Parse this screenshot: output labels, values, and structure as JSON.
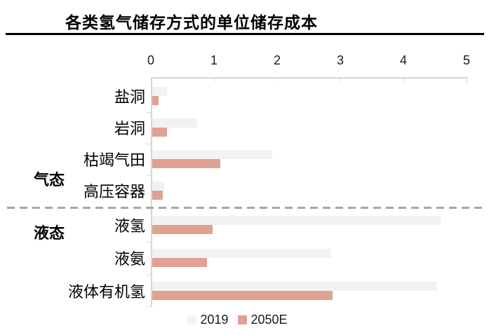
{
  "title": "各类氢气储存方式的单位储存成本",
  "colors": {
    "bar_2019": "#f2f2f2",
    "bar_2050e": "#dfa193",
    "axis": "#d6d6d6",
    "group_divider": "#a6a6a6",
    "title_rule": "#000000"
  },
  "chart_data": {
    "type": "bar",
    "orientation": "horizontal",
    "title": "各类氢气储存方式的单位储存成本",
    "axis_position": "top",
    "xlim": [
      0,
      5
    ],
    "x_ticks": [
      "0",
      "1",
      "2",
      "3",
      "4",
      "5"
    ],
    "grid": false,
    "legend_position": "bottom",
    "groups": [
      {
        "label": "气态",
        "category_indexes": [
          0,
          1,
          2,
          3
        ]
      },
      {
        "label": "液态",
        "category_indexes": [
          4,
          5,
          6
        ]
      }
    ],
    "categories": [
      "盐洞",
      "岩洞",
      "枯竭气田",
      "高压容器",
      "液氢",
      "液氨",
      "液体有机氢"
    ],
    "series": [
      {
        "name": "2019",
        "color": "#f2f2f2",
        "values": [
          0.23,
          0.71,
          1.9,
          0.19,
          4.57,
          2.83,
          4.51
        ]
      },
      {
        "name": "2050E",
        "color": "#dfa193",
        "values": [
          0.1,
          0.23,
          1.08,
          0.17,
          0.96,
          0.87,
          2.86
        ]
      }
    ]
  }
}
